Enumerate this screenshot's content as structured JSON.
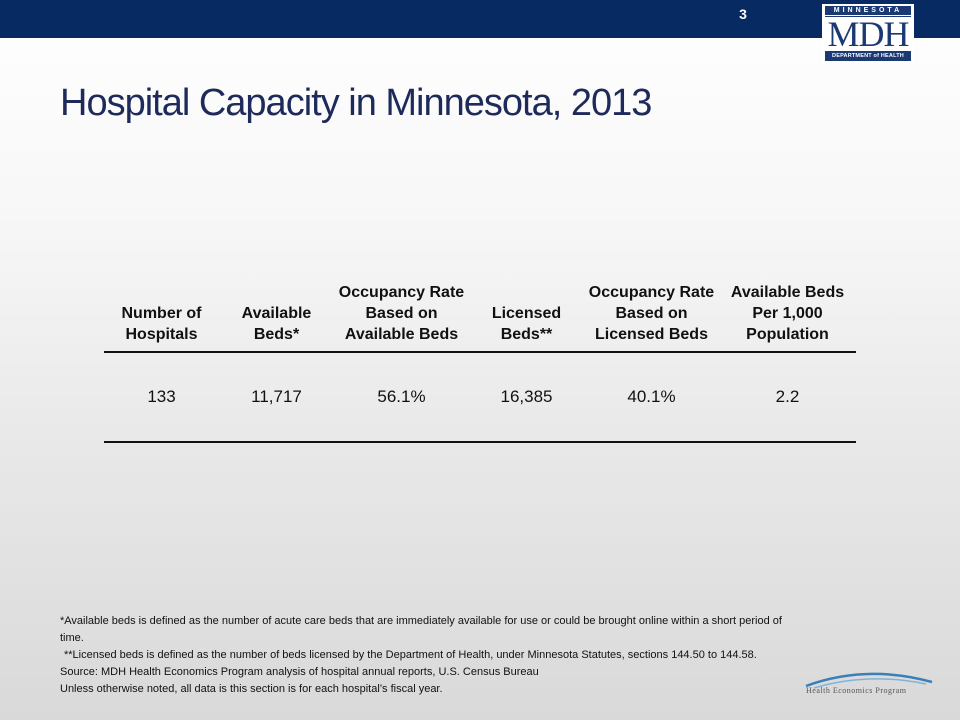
{
  "header": {
    "slide_number": "3",
    "logo": {
      "top": "MINNESOTA",
      "main": "MDH",
      "bottom": "DEPARTMENT of HEALTH"
    }
  },
  "title": "Hospital Capacity in Minnesota, 2013",
  "table": {
    "headers": [
      "Number of Hospitals",
      "Available Beds*",
      "Occupancy Rate Based on Available Beds",
      "Licensed Beds**",
      "Occupancy Rate Based on Licensed Beds",
      "Available Beds Per 1,000 Population"
    ],
    "rows": [
      [
        "133",
        "11,717",
        "56.1%",
        "16,385",
        "40.1%",
        "2.2"
      ]
    ]
  },
  "footnotes": {
    "line1": "*Available beds is defined as the number of acute care beds that are immediately available for use or could be brought online within a short period of time.",
    "line2": "**Licensed beds is defined as the number of beds licensed by the Department of Health, under Minnesota Statutes, sections 144.50 to 144.58.",
    "line3": "Source:  MDH Health Economics Program analysis of hospital annual reports, U.S. Census Bureau",
    "line4": "Unless otherwise noted, all data is this section is for each hospital’s fiscal year."
  },
  "footer_logo": "Health Economics Program",
  "colors": {
    "header_bar": "#082a63",
    "title": "#1e2a5a",
    "logo_blue": "#1b3a73"
  }
}
